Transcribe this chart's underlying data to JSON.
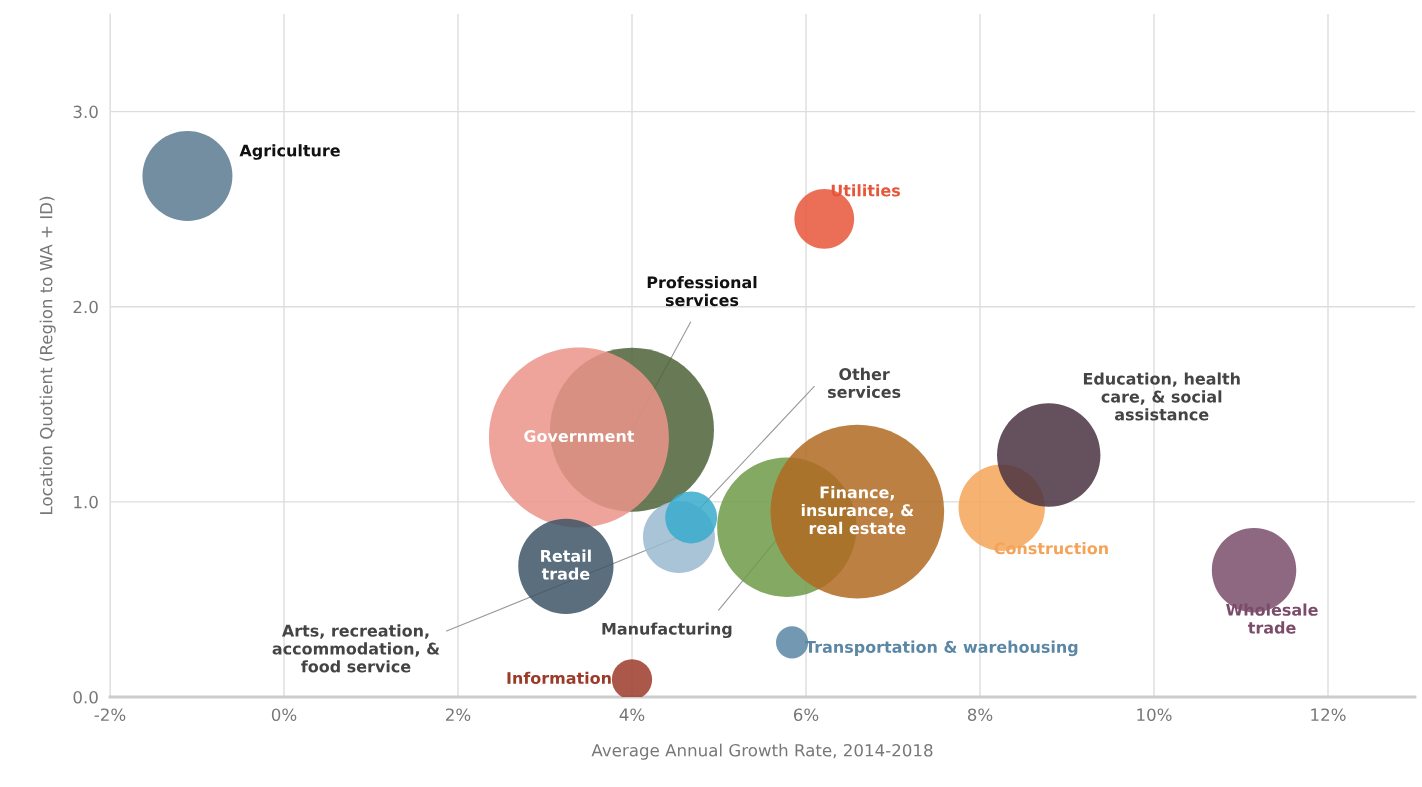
{
  "chart_data": {
    "type": "bubble",
    "xlabel": "Average Annual Growth Rate, 2014-2018",
    "ylabel": "Location Quotient (Region to WA + ID)",
    "xlim": [
      -2,
      13
    ],
    "ylim": [
      0,
      3.5
    ],
    "xticks": [
      {
        "value": -2,
        "label": "-2%"
      },
      {
        "value": 0,
        "label": "0%"
      },
      {
        "value": 2,
        "label": "2%"
      },
      {
        "value": 4,
        "label": "4%"
      },
      {
        "value": 6,
        "label": "6%"
      },
      {
        "value": 8,
        "label": "8%"
      },
      {
        "value": 10,
        "label": "10%"
      },
      {
        "value": 12,
        "label": "12%"
      }
    ],
    "yticks": [
      {
        "value": 0,
        "label": "0.0"
      },
      {
        "value": 1,
        "label": "1.0"
      },
      {
        "value": 2,
        "label": "2.0"
      },
      {
        "value": 3,
        "label": "3.0"
      }
    ],
    "grid": true,
    "legend": false,
    "series": [
      {
        "name": "Agriculture",
        "color": "#5a7a90",
        "x": [
          -1.11
        ],
        "values": [
          2.67
        ],
        "sizes": [
          0.25
        ]
      },
      {
        "name": "Utilities",
        "color": "#e8563a",
        "x": [
          6.21
        ],
        "values": [
          2.45
        ],
        "sizes": [
          0.11
        ]
      },
      {
        "name": "Professional\nservices",
        "color": "#4d6138",
        "x": [
          4.0
        ],
        "values": [
          1.37
        ],
        "sizes": [
          0.83
        ]
      },
      {
        "name": "Government",
        "color": "#eb9488",
        "x": [
          3.39
        ],
        "values": [
          1.33
        ],
        "sizes": [
          1
        ]
      },
      {
        "name": "Arts, recreation,\naccommodation, &\nfood service",
        "color": "#9ab9d0",
        "x": [
          4.54
        ],
        "values": [
          0.82
        ],
        "sizes": [
          0.16
        ]
      },
      {
        "name": "Other\nservices",
        "color": "#3aaccc",
        "x": [
          4.68
        ],
        "values": [
          0.92
        ],
        "sizes": [
          0.083
        ]
      },
      {
        "name": "Manufacturing",
        "color": "#6e9a48",
        "x": [
          5.78
        ],
        "values": [
          0.87
        ],
        "sizes": [
          0.6
        ]
      },
      {
        "name": "Finance,\ninsurance, &\nreal estate",
        "color": "#b06a22",
        "x": [
          6.59
        ],
        "values": [
          0.95
        ],
        "sizes": [
          0.93
        ]
      },
      {
        "name": "Construction",
        "color": "#f4a458",
        "x": [
          8.25
        ],
        "values": [
          0.97
        ],
        "sizes": [
          0.23
        ]
      },
      {
        "name": "Education, health\ncare, & social\nassistance",
        "color": "#4a3242",
        "x": [
          8.79
        ],
        "values": [
          1.24
        ],
        "sizes": [
          0.33
        ]
      },
      {
        "name": "Wholesale\ntrade",
        "color": "#7a4c6a",
        "x": [
          11.15
        ],
        "values": [
          0.65
        ],
        "sizes": [
          0.22
        ]
      },
      {
        "name": "Transportation & warehousing",
        "color": "#5b87a5",
        "x": [
          5.84
        ],
        "values": [
          0.28
        ],
        "sizes": [
          0.032
        ]
      },
      {
        "name": "Information",
        "color": "#9c3a2a",
        "x": [
          4.0
        ],
        "values": [
          0.09
        ],
        "sizes": [
          0.05
        ]
      },
      {
        "name": "Retail\ntrade",
        "color": "#3d5566",
        "x": [
          3.24
        ],
        "values": [
          0.67
        ],
        "sizes": [
          0.28
        ]
      }
    ]
  }
}
